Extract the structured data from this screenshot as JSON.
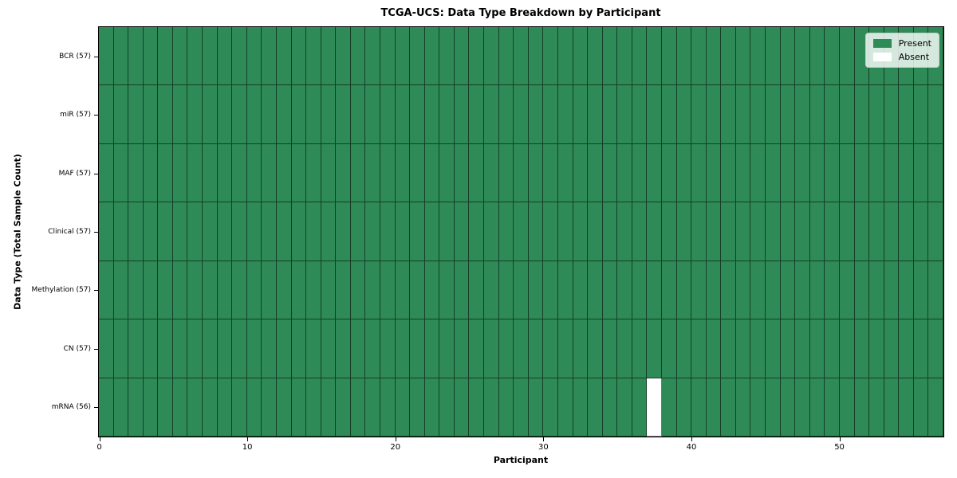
{
  "chart_data": {
    "type": "heatmap",
    "title": "TCGA-UCS: Data Type Breakdown by Participant",
    "xlabel": "Participant",
    "ylabel": "Data Type (Total Sample Count)",
    "xlim": [
      0,
      57
    ],
    "n_participants": 57,
    "x_ticks": [
      0,
      10,
      20,
      30,
      40,
      50
    ],
    "rows": [
      {
        "label": "BCR (57)",
        "present_count": 57
      },
      {
        "label": "miR (57)",
        "present_count": 57
      },
      {
        "label": "MAF (57)",
        "present_count": 57
      },
      {
        "label": "Clinical (57)",
        "present_count": 57
      },
      {
        "label": "Methylation (57)",
        "present_count": 57
      },
      {
        "label": "CN (57)",
        "present_count": 57
      },
      {
        "label": "mRNA (56)",
        "present_count": 56
      }
    ],
    "absent_cells": [
      {
        "row_label": "mRNA (56)",
        "participant_index": 37
      }
    ],
    "legend": {
      "position": "upper right",
      "entries": [
        {
          "label": "Present",
          "color": "#2e8b57"
        },
        {
          "label": "Absent",
          "color": "#ffffff"
        }
      ]
    },
    "colors": {
      "present": "#2e8b57",
      "absent": "#ffffff",
      "grid_line": "rgba(0,0,0,0.55)",
      "spine": "#000000"
    }
  }
}
